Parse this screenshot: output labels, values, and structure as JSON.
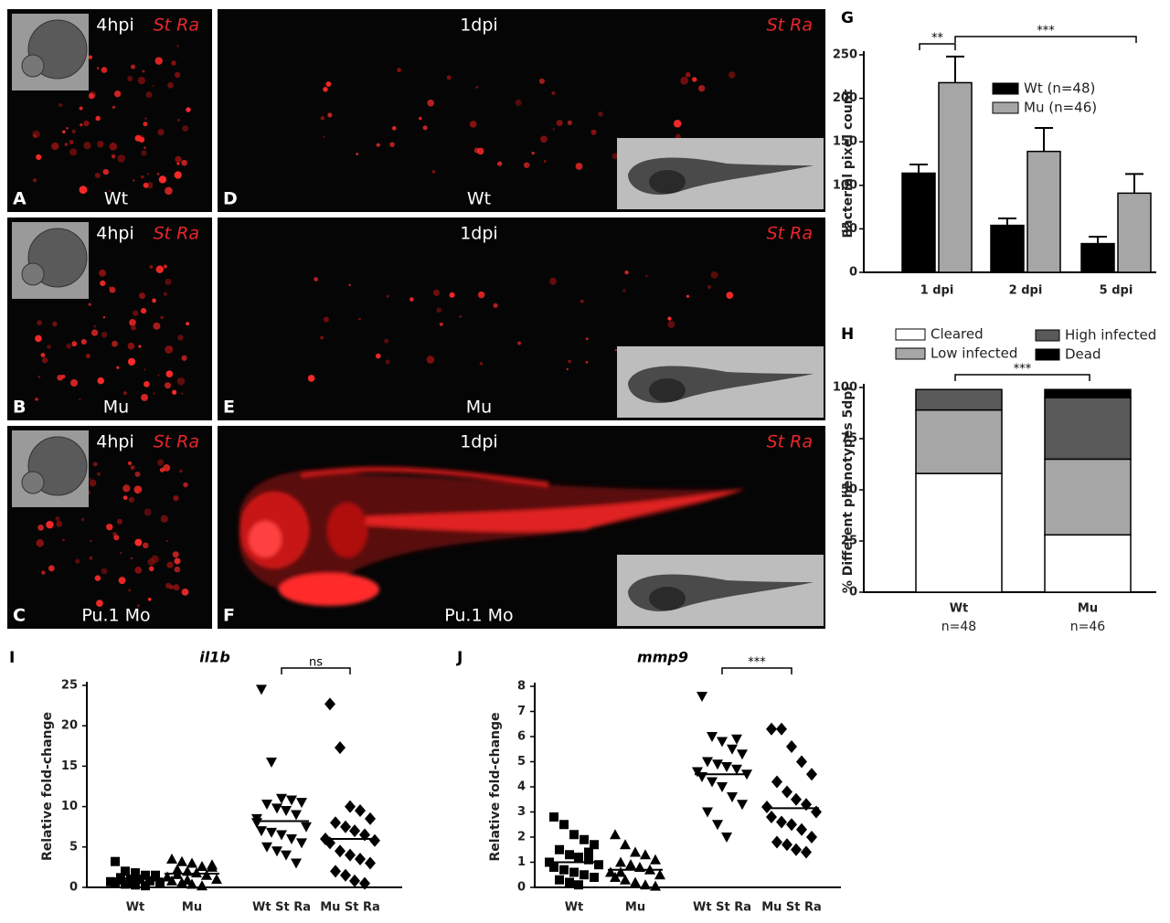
{
  "panels": [
    {
      "letter": "A",
      "time": "4hpi",
      "strain": "St Ra",
      "genotype": "Wt"
    },
    {
      "letter": "B",
      "time": "4hpi",
      "strain": "St Ra",
      "genotype": "Mu"
    },
    {
      "letter": "C",
      "time": "4hpi",
      "strain": "St Ra",
      "genotype": "Pu.1 Mo"
    },
    {
      "letter": "D",
      "time": "1dpi",
      "strain": "St Ra",
      "genotype": "Wt"
    },
    {
      "letter": "E",
      "time": "1dpi",
      "strain": "St Ra",
      "genotype": "Mu"
    },
    {
      "letter": "F",
      "time": "1dpi",
      "strain": "St Ra",
      "genotype": "Pu.1 Mo"
    }
  ],
  "chart_data": [
    {
      "type": "bar",
      "letter": "G",
      "ylabel": "Bacterial pixel count",
      "categories": [
        "1 dpi",
        "2 dpi",
        "5 dpi"
      ],
      "series": [
        {
          "name": "Wt (n=48)",
          "color": "#000000",
          "values": [
            114,
            54,
            33
          ],
          "errors": [
            10,
            8,
            8
          ]
        },
        {
          "name": "Mu (n=46)",
          "color": "#a6a6a6",
          "values": [
            218,
            139,
            91
          ],
          "errors": [
            30,
            27,
            22
          ]
        }
      ],
      "ylim": [
        0,
        250
      ],
      "yticks": [
        0,
        50,
        100,
        150,
        200,
        250
      ],
      "significance": [
        "**",
        "***"
      ]
    },
    {
      "type": "stacked_bar",
      "letter": "H",
      "ylabel": "% Different phenotypes 5dpi",
      "categories": [
        "Wt",
        "Mu"
      ],
      "category_notes": [
        "n=48",
        "n=46"
      ],
      "series": [
        {
          "name": "Cleared",
          "color": "#ffffff",
          "values": [
            58,
            28
          ]
        },
        {
          "name": "Low infected",
          "color": "#a6a6a6",
          "values": [
            31,
            37
          ]
        },
        {
          "name": "High infected",
          "color": "#595959",
          "values": [
            10,
            30
          ]
        },
        {
          "name": "Dead",
          "color": "#000000",
          "values": [
            0,
            4
          ]
        }
      ],
      "ylim": [
        0,
        100
      ],
      "yticks": [
        0,
        25,
        50,
        75,
        100
      ],
      "significance": [
        "***"
      ]
    },
    {
      "type": "dotplot",
      "letter": "I",
      "title": "il1b",
      "ylabel": "Relative fold-change",
      "categories": [
        "Wt",
        "Mu",
        "Wt St Ra",
        "Mu St Ra"
      ],
      "groups": [
        {
          "marker": "square",
          "mean": 1.1,
          "values": [
            3.2,
            2.0,
            1.8,
            1.5,
            1.3,
            1.2,
            1.0,
            1.0,
            0.8,
            0.7,
            0.6,
            0.5,
            0.4,
            0.3,
            0.2,
            1.5,
            0.9,
            0.6
          ]
        },
        {
          "marker": "triangle-up",
          "mean": 1.7,
          "values": [
            3.5,
            3.2,
            3.0,
            2.6,
            2.5,
            2.2,
            2.0,
            1.8,
            1.5,
            1.3,
            1.0,
            0.8,
            0.6,
            0.4,
            0.2,
            2.8,
            1.6,
            0.9
          ]
        },
        {
          "marker": "triangle-down",
          "mean": 8.2,
          "values": [
            24.5,
            15.5,
            11.0,
            10.8,
            10.5,
            10.3,
            9.8,
            9.5,
            9.0,
            8.0,
            7.5,
            7.0,
            6.8,
            6.5,
            6.0,
            5.5,
            5.0,
            4.5,
            4.0,
            3.0,
            8.5
          ]
        },
        {
          "marker": "diamond",
          "mean": 6.0,
          "values": [
            22.7,
            17.3,
            10.0,
            9.5,
            8.5,
            8.0,
            7.5,
            7.0,
            6.5,
            6.0,
            5.8,
            5.5,
            4.5,
            4.0,
            3.5,
            3.0,
            2.0,
            1.5,
            0.8,
            0.5
          ]
        }
      ],
      "ylim": [
        0,
        25
      ],
      "yticks": [
        0,
        5,
        10,
        15,
        20,
        25
      ],
      "significance": [
        "ns"
      ]
    },
    {
      "type": "dotplot",
      "letter": "J",
      "title": "mmp9",
      "ylabel": "Relative fold-change",
      "categories": [
        "Wt",
        "Mu",
        "Wt St Ra",
        "Mu St Ra"
      ],
      "groups": [
        {
          "marker": "square",
          "mean": 1.0,
          "values": [
            2.8,
            2.5,
            2.1,
            1.9,
            1.7,
            1.5,
            1.3,
            1.2,
            1.1,
            1.0,
            0.9,
            0.8,
            0.7,
            0.6,
            0.5,
            0.4,
            0.3,
            0.2,
            0.1,
            1.4
          ]
        },
        {
          "marker": "triangle-up",
          "mean": 0.7,
          "values": [
            2.1,
            1.7,
            1.4,
            1.3,
            1.1,
            1.0,
            0.9,
            0.8,
            0.7,
            0.6,
            0.5,
            0.4,
            0.3,
            0.2,
            0.1,
            0.05,
            0.6,
            0.9
          ]
        },
        {
          "marker": "triangle-down",
          "mean": 4.5,
          "values": [
            7.6,
            6.0,
            5.8,
            5.5,
            5.3,
            5.0,
            4.9,
            4.8,
            4.7,
            4.6,
            4.5,
            4.4,
            4.2,
            4.0,
            3.6,
            3.3,
            3.0,
            2.5,
            2.0,
            5.9
          ]
        },
        {
          "marker": "diamond",
          "mean": 3.15,
          "values": [
            6.3,
            6.3,
            5.6,
            5.0,
            4.5,
            4.2,
            3.8,
            3.5,
            3.3,
            3.2,
            3.0,
            2.8,
            2.6,
            2.5,
            2.3,
            2.0,
            1.8,
            1.7,
            1.5,
            1.4
          ]
        }
      ],
      "ylim": [
        0,
        8
      ],
      "yticks": [
        0,
        1,
        2,
        3,
        4,
        5,
        6,
        7,
        8
      ],
      "significance": [
        "***"
      ]
    }
  ]
}
